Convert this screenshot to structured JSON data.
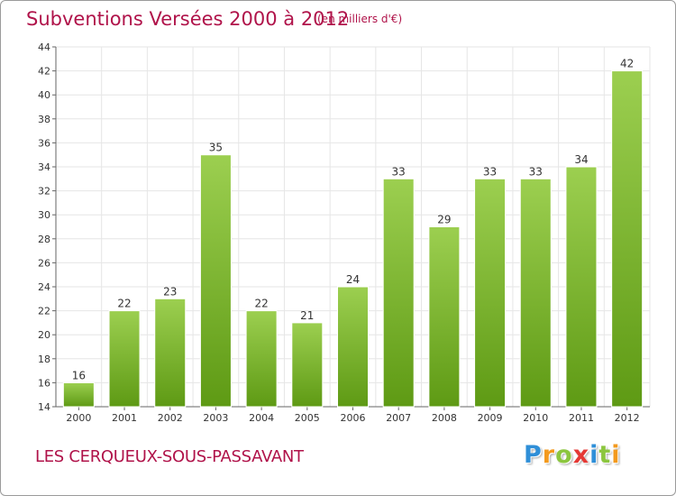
{
  "header": {
    "title": "Subventions Versées 2000 à 2012",
    "subtitle": "(en milliers d'€)"
  },
  "footer": {
    "commune": "LES CERQUEUX-SOUS-PASSAVANT",
    "logo_letters": [
      "P",
      "r",
      "o",
      "x",
      "i",
      "t",
      "i"
    ],
    "logo_colors": [
      "#2f8fd8",
      "#f39a1e",
      "#8cc63f",
      "#e53935",
      "#2f8fd8",
      "#8cc63f",
      "#f39a1e"
    ]
  },
  "colors": {
    "bar_light": "#9ccf50",
    "bar_dark": "#5e9a14",
    "grid": "#e6e6e6",
    "text_accent": "#b0134a"
  },
  "chart_data": {
    "type": "bar",
    "categories": [
      "2000",
      "2001",
      "2002",
      "2003",
      "2004",
      "2005",
      "2006",
      "2007",
      "2008",
      "2009",
      "2010",
      "2011",
      "2012"
    ],
    "values": [
      16,
      22,
      23,
      35,
      22,
      21,
      24,
      33,
      29,
      33,
      33,
      34,
      42
    ],
    "ylim": [
      14,
      44
    ],
    "yticks": [
      14,
      16,
      18,
      20,
      22,
      24,
      26,
      28,
      30,
      32,
      34,
      36,
      38,
      40,
      42,
      44
    ],
    "grid": true,
    "data_labels": true
  }
}
